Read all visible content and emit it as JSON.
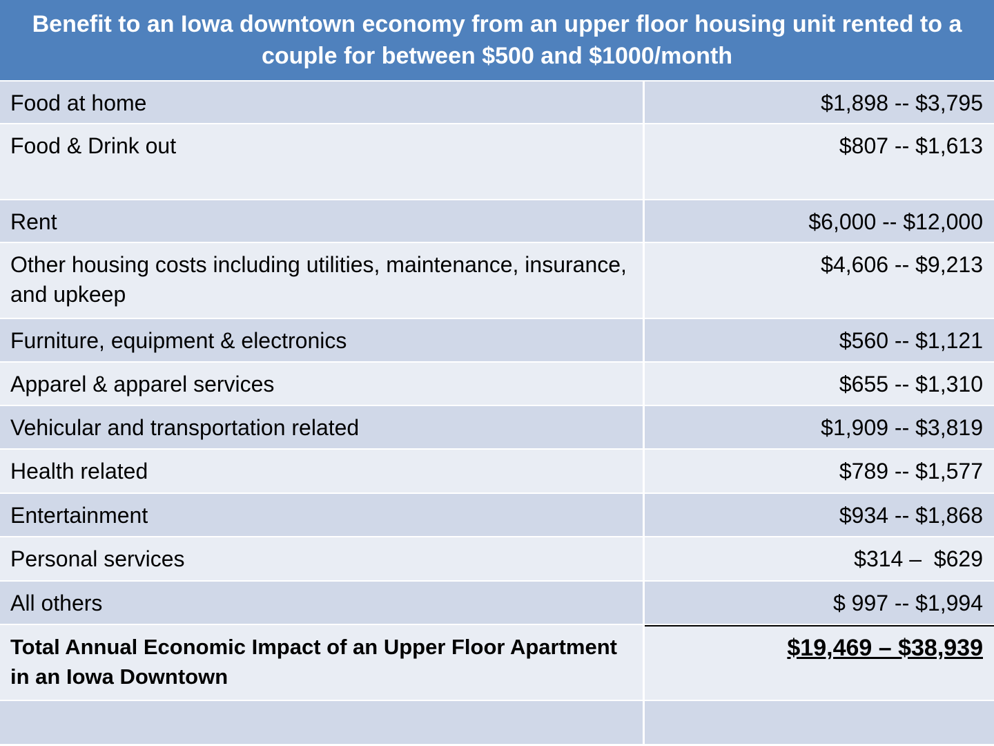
{
  "header": {
    "title": "Benefit to an Iowa downtown economy from an upper floor housing unit rented to a couple for between $500 and $1000/month"
  },
  "rows": [
    {
      "label": "Food at home",
      "value": "$1,898 -- $3,795"
    },
    {
      "label": "Food & Drink out",
      "value": "$807 -- $1,613"
    },
    {
      "label": "Rent",
      "value": "$6,000 -- $12,000"
    },
    {
      "label": "Other housing costs including utilities, maintenance, insurance, and upkeep",
      "value": "$4,606 -- $9,213"
    },
    {
      "label": "Furniture, equipment & electronics",
      "value": "$560 -- $1,121"
    },
    {
      "label": "Apparel & apparel services",
      "value": "$655 -- $1,310"
    },
    {
      "label": "Vehicular and transportation related",
      "value": "$1,909 -- $3,819"
    },
    {
      "label": "Health related",
      "value": "$789 -- $1,577"
    },
    {
      "label": "Entertainment",
      "value": "$934 -- $1,868"
    },
    {
      "label": "Personal services",
      "value": "$314 –  $629"
    },
    {
      "label": "All others",
      "value": "$ 997 -- $1,994"
    }
  ],
  "total": {
    "label": "Total Annual Economic Impact of an Upper Floor Apartment in an Iowa Downtown",
    "value": "$19,469 – $38,939"
  },
  "colors": {
    "header_bg": "#4f81bd",
    "row_dark": "#d0d8e8",
    "row_light": "#e9edf4"
  }
}
